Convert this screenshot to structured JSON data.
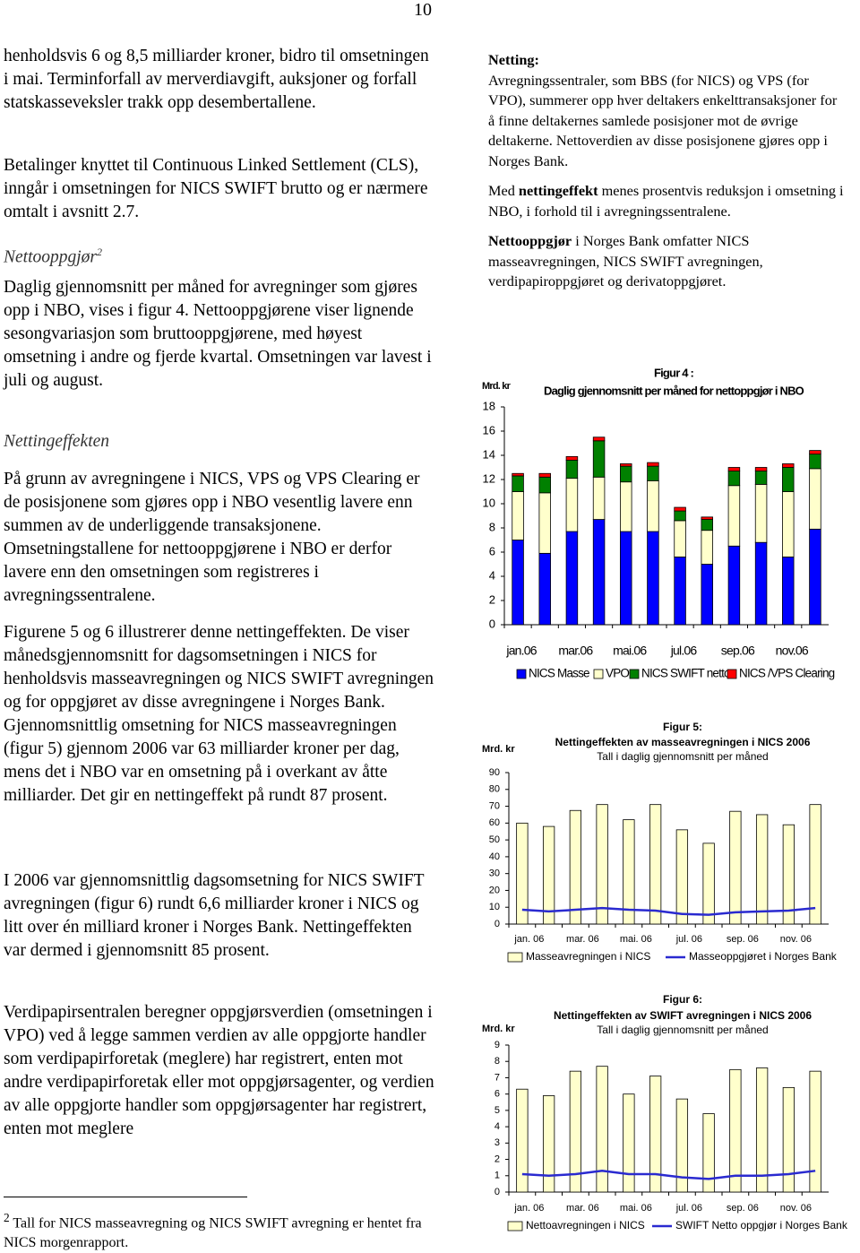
{
  "page_number": "10",
  "left": {
    "blocks": [
      {
        "text": "henholdsvis 6 og 8,5 milliarder kroner, bidro til omsetningen i mai. Terminforfall av merverdiavgift, auksjoner og forfall statskasseveksler trakk opp desembertallene."
      },
      {
        "text": "Betalinger knyttet til Continuous Linked Settlement (CLS), inngår i omsetningen for NICS SWIFT brutto og er nærmere omtalt i avsnitt 2.7."
      },
      {
        "heading": "Nettooppgjør",
        "note": "2"
      },
      {
        "text": "Daglig gjennomsnitt per måned for avregninger som gjøres opp i NBO, vises i figur 4. Nettooppgjørene viser lignende sesongvariasjon som bruttooppgjørene, med høyest omsetning i andre og fjerde kvartal. Omsetningen var lavest i juli og august."
      },
      {
        "heading": "Nettingeffekten"
      },
      {
        "text": "På grunn av avregningene i NICS, VPS og VPS Clearing er de posisjonene som gjøres opp i NBO vesentlig lavere enn summen av de underliggende transaksjonene. Omsetningstallene for nettooppgjørene i NBO er derfor lavere enn den omsetningen som registreres i avregningssentralene."
      },
      {
        "text": "Figurene 5 og 6 illustrerer denne nettingeffekten. De viser månedsgjennomsnitt for dagsomsetningen i NICS for henholdsvis masseavregningen og NICS SWIFT avregningen og for oppgjøret av disse avregningene i Norges Bank. Gjennomsnittlig omsetning for NICS masseavregningen (figur 5) gjennom 2006 var 63 milliarder kroner per dag, mens det i NBO var en omsetning på i overkant av åtte milliarder. Det gir en nettingeffekt på rundt 87 prosent."
      },
      {
        "text": "I 2006 var gjennomsnittlig dagsomsetning for NICS SWIFT avregningen (figur 6) rundt 6,6 milliarder kroner i NICS og litt over én milliard kroner i Norges Bank. Nettingeffekten var dermed i gjennomsnitt 85 prosent."
      },
      {
        "text": "Verdipapirsentralen beregner oppgjørsverdien (omsetningen i VPO) ved å legge sammen verdien av alle oppgjorte handler som verdipapirforetak (meglere) har registrert, enten mot andre verdipapirforetak eller mot oppgjørsagenter, og verdien av alle oppgjorte handler som oppgjørsagenter har registrert, enten mot meglere"
      }
    ]
  },
  "footnote": {
    "mark": "2",
    "text": "Tall for NICS masseavregning og NICS SWIFT avregning er hentet fra NICS morgenrapport."
  },
  "box": {
    "title": "Netting:",
    "paragraphs": [
      [
        {
          "text": "Avregningssentraler, som BBS (for NICS) og VPS (for VPO), summerer opp hver deltakers enkelttransaksjoner for å finne deltakernes samlede posisjoner mot de øvrige deltakerne. Nettoverdien av disse posisjonene gjøres opp i Norges Bank."
        }
      ],
      [
        {
          "text": "Med "
        },
        {
          "text": "nettingeffekt",
          "bold": true
        },
        {
          "text": " menes prosentvis reduksjon i omsetning i NBO, i forhold til i avregningssentralene."
        }
      ],
      [
        {
          "text": "Nettooppgjør",
          "bold": true
        },
        {
          "text": " i Norges Bank omfatter NICS masseavregningen, NICS SWIFT avregningen, verdipapiroppgjøret og derivatoppgjøret."
        }
      ]
    ]
  },
  "chart_data": [
    {
      "type": "bar",
      "stacked": true,
      "title": "Figur 4 :",
      "subtitle": "Daglig gjennomsnitt per måned for nettoppgjør i NBO",
      "y_label": "Mrd. kr",
      "categories": [
        "jan.06",
        null,
        "mar.06",
        null,
        "mai.06",
        null,
        "jul.06",
        null,
        "sep.06",
        null,
        "nov.06",
        null
      ],
      "ylim": [
        0,
        18
      ],
      "yticks": [
        0,
        2,
        4,
        6,
        8,
        10,
        12,
        14,
        16,
        18
      ],
      "series": [
        {
          "name": "NICS Masse",
          "color": "#0000ff",
          "values": [
            7.0,
            5.9,
            7.7,
            8.7,
            7.7,
            7.7,
            5.6,
            5.0,
            6.5,
            6.8,
            5.6,
            7.9
          ]
        },
        {
          "name": "VPO",
          "color": "#ffffcc",
          "values": [
            4.0,
            5.0,
            4.4,
            3.5,
            4.1,
            4.2,
            3.0,
            2.8,
            5.0,
            4.8,
            5.4,
            5.0
          ]
        },
        {
          "name": "NICS SWIFT netto",
          "color": "#008000",
          "values": [
            1.3,
            1.3,
            1.5,
            3.0,
            1.3,
            1.2,
            0.8,
            0.9,
            1.2,
            1.1,
            2.0,
            1.2
          ]
        },
        {
          "name": "NICS /VPS Clearing",
          "color": "#ff0000",
          "values": [
            0.2,
            0.3,
            0.3,
            0.3,
            0.2,
            0.3,
            0.3,
            0.2,
            0.3,
            0.3,
            0.3,
            0.3
          ]
        }
      ]
    },
    {
      "type": "bar",
      "title": "Figur 5:",
      "subtitle": "Nettingeffekten av masseavregningen i NICS 2006",
      "note": "Tall i daglig gjennomsnitt per måned",
      "y_label": "Mrd. kr",
      "categories": [
        "jan. 06",
        null,
        "mar. 06",
        null,
        "mai. 06",
        null,
        "jul. 06",
        null,
        "sep. 06",
        null,
        "nov. 06",
        null
      ],
      "ylim": [
        0,
        90
      ],
      "yticks": [
        0,
        10,
        20,
        30,
        40,
        50,
        60,
        70,
        80,
        90
      ],
      "series": [
        {
          "name": "Masseavregningen i NICS",
          "color": "#ffffcc",
          "values": [
            60,
            58,
            67.5,
            71,
            62,
            71,
            56,
            48,
            67,
            65,
            59,
            71
          ]
        },
        {
          "name": "Masseoppgjøret i Norges Bank",
          "type": "line",
          "color": "#2a2ad0",
          "values": [
            8.5,
            7.5,
            8.5,
            9.5,
            8.5,
            8,
            6,
            5.5,
            7,
            7.5,
            8,
            9.5
          ]
        }
      ]
    },
    {
      "type": "bar",
      "title": "Figur 6:",
      "subtitle": "Nettingeffekten av SWIFT avregningen i NICS 2006",
      "note": "Tall i daglig gjennomsnitt per måned",
      "y_label": "Mrd. kr",
      "categories": [
        "jan. 06",
        null,
        "mar. 06",
        null,
        "mai. 06",
        null,
        "jul. 06",
        null,
        "sep. 06",
        null,
        "nov. 06",
        null
      ],
      "ylim": [
        0,
        9
      ],
      "yticks": [
        0,
        1,
        2,
        3,
        4,
        5,
        6,
        7,
        8,
        9
      ],
      "series": [
        {
          "name": "Nettoavregningen i NICS",
          "color": "#ffffcc",
          "values": [
            6.3,
            5.9,
            7.4,
            7.7,
            6.0,
            7.1,
            5.7,
            4.8,
            7.5,
            7.6,
            6.4,
            7.4
          ]
        },
        {
          "name": "SWIFT Netto oppgjør i Norges Bank",
          "type": "line",
          "color": "#2a2ad0",
          "values": [
            1.1,
            1.0,
            1.1,
            1.3,
            1.1,
            1.1,
            0.9,
            0.8,
            1.0,
            1.0,
            1.1,
            1.3
          ]
        }
      ]
    }
  ]
}
